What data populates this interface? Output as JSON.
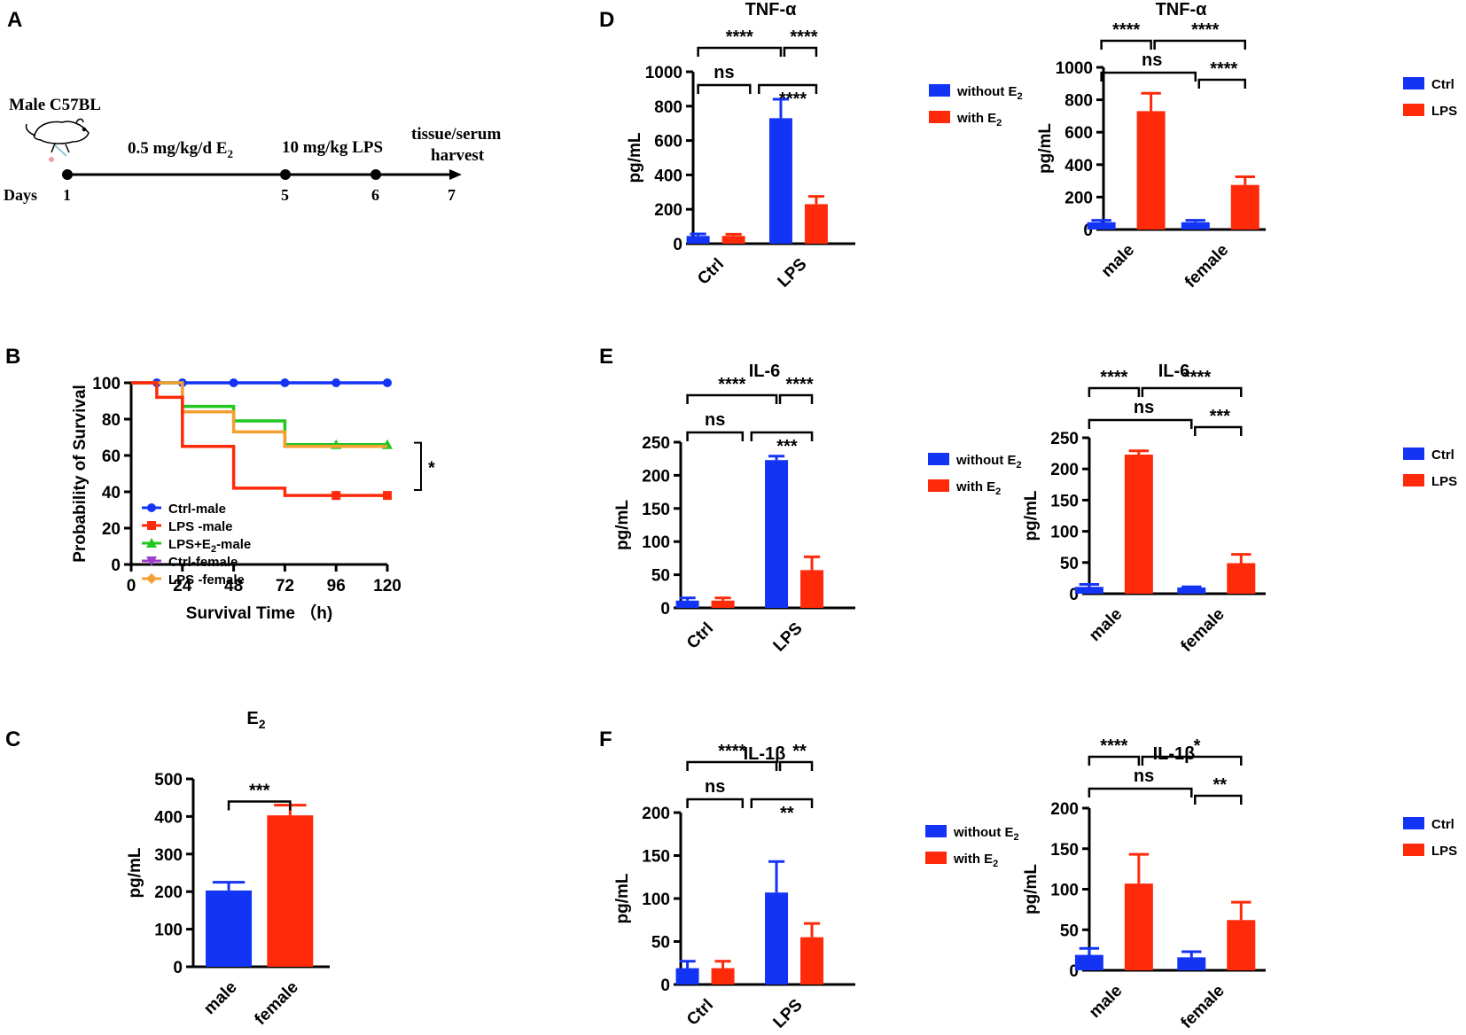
{
  "panel_letters": {
    "A": "A",
    "B": "B",
    "C": "C",
    "D": "D",
    "E": "E",
    "F": "F"
  },
  "colors": {
    "blue": "#1434f5",
    "red": "#ff2a0a",
    "green": "#22c722",
    "purple": "#a03ccc",
    "orange": "#f3a031",
    "black": "#000000"
  },
  "timeline": {
    "mouse_label": "Male C57BL",
    "e2_label_main": "0.5 mg/kg/d E",
    "e2_label_sub": "2",
    "lps_label": "10 mg/kg LPS",
    "harvest_line1": "tissue/serum",
    "harvest_line2": "harvest",
    "days_label": "Days",
    "day_ticks": [
      "1",
      "5",
      "6",
      "7"
    ]
  },
  "chart_data": [
    {
      "id": "B",
      "type": "line",
      "style": "step-survival",
      "title": "",
      "xlabel": "Survival Time （h)",
      "ylabel": "Probability of Survival",
      "xlim": [
        0,
        120
      ],
      "ylim": [
        0,
        100
      ],
      "xticks": [
        "0",
        "24",
        "48",
        "72",
        "96",
        "120"
      ],
      "yticks": [
        "0",
        "20",
        "40",
        "60",
        "80",
        "100"
      ],
      "significance": "*",
      "series": [
        {
          "name": "Ctrl-male",
          "color": "#1434f5",
          "marker": "circle",
          "steps": [
            [
              0,
              100
            ],
            [
              120,
              100
            ]
          ],
          "markers": [
            [
              12,
              100
            ],
            [
              24,
              100
            ],
            [
              48,
              100
            ],
            [
              72,
              100
            ],
            [
              96,
              100
            ],
            [
              120,
              100
            ]
          ]
        },
        {
          "name": "LPS+E2-male",
          "legend_main": "LPS+E",
          "legend_sub": "2",
          "legend_tail": "-male",
          "color": "#22c722",
          "marker": "triangle",
          "steps": [
            [
              0,
              100
            ],
            [
              24,
              100
            ],
            [
              24,
              87
            ],
            [
              48,
              87
            ],
            [
              48,
              79
            ],
            [
              72,
              79
            ],
            [
              72,
              66
            ],
            [
              120,
              66
            ]
          ],
          "markers": [
            [
              96,
              66
            ],
            [
              120,
              66
            ]
          ]
        },
        {
          "name": "Ctrl-female",
          "color": "#a03ccc",
          "marker": "triangle-down",
          "steps": [],
          "markers": []
        },
        {
          "name": "LPS -female",
          "color": "#f3a031",
          "marker": "diamond",
          "steps": [
            [
              0,
              100
            ],
            [
              24,
              100
            ],
            [
              24,
              84
            ],
            [
              48,
              84
            ],
            [
              48,
              73
            ],
            [
              72,
              73
            ],
            [
              72,
              65
            ],
            [
              120,
              65
            ]
          ],
          "markers": []
        },
        {
          "name": "LPS -male",
          "color": "#ff2a0a",
          "marker": "square",
          "steps": [
            [
              0,
              100
            ],
            [
              12,
              100
            ],
            [
              12,
              92
            ],
            [
              24,
              92
            ],
            [
              24,
              65
            ],
            [
              48,
              65
            ],
            [
              48,
              42
            ],
            [
              72,
              42
            ],
            [
              72,
              38
            ],
            [
              120,
              38
            ]
          ],
          "markers": [
            [
              96,
              38
            ],
            [
              120,
              38
            ]
          ]
        }
      ],
      "legend_order": [
        "Ctrl-male",
        "LPS -male",
        "LPS+E2-male",
        "Ctrl-female",
        "LPS -female"
      ]
    },
    {
      "id": "C",
      "type": "bar",
      "title_main": "E",
      "title_sub": "2",
      "ylabel": "pg/mL",
      "ylim": [
        0,
        500
      ],
      "yticks": [
        "0",
        "100",
        "200",
        "300",
        "400",
        "500"
      ],
      "categories": [
        "male",
        "female"
      ],
      "values": [
        203,
        403
      ],
      "errors": [
        22,
        27
      ],
      "bar_colors": [
        "#1434f5",
        "#ff2a0a"
      ],
      "significance": [
        {
          "from": 0,
          "to": 1,
          "text": "***"
        }
      ]
    },
    {
      "id": "D-left",
      "type": "bar",
      "title": "TNF-α",
      "ylabel": "pg/mL",
      "ylim": [
        0,
        1000
      ],
      "yticks": [
        "0",
        "200",
        "400",
        "600",
        "800",
        "1000"
      ],
      "categories": [
        "Ctrl",
        "LPS"
      ],
      "series": [
        {
          "name": "without E2",
          "legend_main": "without E",
          "legend_sub": "2",
          "color": "#1434f5",
          "values": [
            45,
            730
          ],
          "errors": [
            12,
            110
          ]
        },
        {
          "name": "with E2",
          "legend_main": "with E",
          "legend_sub": "2",
          "color": "#ff2a0a",
          "values": [
            45,
            230
          ],
          "errors": [
            10,
            45
          ]
        }
      ],
      "significance": [
        {
          "from": "Ctrl",
          "to": "LPS",
          "level": 1,
          "text": "ns"
        },
        {
          "from": "Ctrl+",
          "to": "LPS+",
          "level": 1,
          "text": "****"
        },
        {
          "from": "Ctrl",
          "to": "LPS",
          "level": 2,
          "text": "****"
        },
        {
          "from": "LPS",
          "to": "LPS+",
          "level": 2,
          "text": "****"
        }
      ]
    },
    {
      "id": "D-right",
      "type": "bar",
      "title": "TNF-α",
      "ylabel": "pg/mL",
      "ylim": [
        0,
        1000
      ],
      "yticks": [
        "0",
        "200",
        "400",
        "600",
        "800",
        "1000"
      ],
      "categories": [
        "male",
        "female"
      ],
      "series": [
        {
          "name": "Ctrl",
          "color": "#1434f5",
          "values": [
            45,
            45
          ],
          "errors": [
            12,
            12
          ]
        },
        {
          "name": "LPS",
          "color": "#ff2a0a",
          "values": [
            730,
            275
          ],
          "errors": [
            110,
            50
          ]
        }
      ],
      "significance": [
        {
          "text": "ns"
        },
        {
          "text": "****"
        },
        {
          "text": "****"
        },
        {
          "text": "****"
        }
      ]
    },
    {
      "id": "E-left",
      "type": "bar",
      "title": "IL-6",
      "ylabel": "pg/mL",
      "ylim": [
        0,
        250
      ],
      "yticks": [
        "0",
        "50",
        "100",
        "150",
        "200",
        "250"
      ],
      "categories": [
        "Ctrl",
        "LPS"
      ],
      "series": [
        {
          "name": "without E2",
          "legend_main": "without E",
          "legend_sub": "2",
          "color": "#1434f5",
          "values": [
            11,
            223
          ],
          "errors": [
            4,
            6
          ]
        },
        {
          "name": "with E2",
          "legend_main": "with E",
          "legend_sub": "2",
          "color": "#ff2a0a",
          "values": [
            11,
            57
          ],
          "errors": [
            4,
            20
          ]
        }
      ],
      "significance": [
        {
          "text": "ns"
        },
        {
          "text": "***"
        },
        {
          "text": "****"
        },
        {
          "text": "****"
        }
      ]
    },
    {
      "id": "E-right",
      "type": "bar",
      "title": "IL-6",
      "ylabel": "pg/mL",
      "ylim": [
        0,
        250
      ],
      "yticks": [
        "0",
        "50",
        "100",
        "150",
        "200",
        "250"
      ],
      "categories": [
        "male",
        "female"
      ],
      "series": [
        {
          "name": "Ctrl",
          "color": "#1434f5",
          "values": [
            11,
            10
          ],
          "errors": [
            4,
            1
          ]
        },
        {
          "name": "LPS",
          "color": "#ff2a0a",
          "values": [
            223,
            49
          ],
          "errors": [
            6,
            14
          ]
        }
      ],
      "significance": [
        {
          "text": "ns"
        },
        {
          "text": "***"
        },
        {
          "text": "****"
        },
        {
          "text": "****"
        }
      ]
    },
    {
      "id": "F-left",
      "type": "bar",
      "title": "IL-1β",
      "ylabel": "pg/mL",
      "ylim": [
        0,
        200
      ],
      "yticks": [
        "0",
        "50",
        "100",
        "150",
        "200"
      ],
      "categories": [
        "Ctrl",
        "LPS"
      ],
      "series": [
        {
          "name": "without E2",
          "legend_main": "without E",
          "legend_sub": "2",
          "color": "#1434f5",
          "values": [
            19,
            107
          ],
          "errors": [
            8,
            36
          ]
        },
        {
          "name": "with E2",
          "legend_main": "with E",
          "legend_sub": "2",
          "color": "#ff2a0a",
          "values": [
            19,
            55
          ],
          "errors": [
            8,
            16
          ]
        }
      ],
      "significance": [
        {
          "text": "ns"
        },
        {
          "text": "**"
        },
        {
          "text": "****"
        },
        {
          "text": "**"
        }
      ]
    },
    {
      "id": "F-right",
      "type": "bar",
      "title": "IL-1β",
      "ylabel": "pg/mL",
      "ylim": [
        0,
        200
      ],
      "yticks": [
        "0",
        "50",
        "100",
        "150",
        "200"
      ],
      "categories": [
        "male",
        "female"
      ],
      "series": [
        {
          "name": "Ctrl",
          "color": "#1434f5",
          "values": [
            19,
            16
          ],
          "errors": [
            8,
            7
          ]
        },
        {
          "name": "LPS",
          "color": "#ff2a0a",
          "values": [
            107,
            62
          ],
          "errors": [
            36,
            22
          ]
        }
      ],
      "significance": [
        {
          "text": "ns"
        },
        {
          "text": "**"
        },
        {
          "text": "****"
        },
        {
          "text": "*"
        }
      ]
    }
  ]
}
